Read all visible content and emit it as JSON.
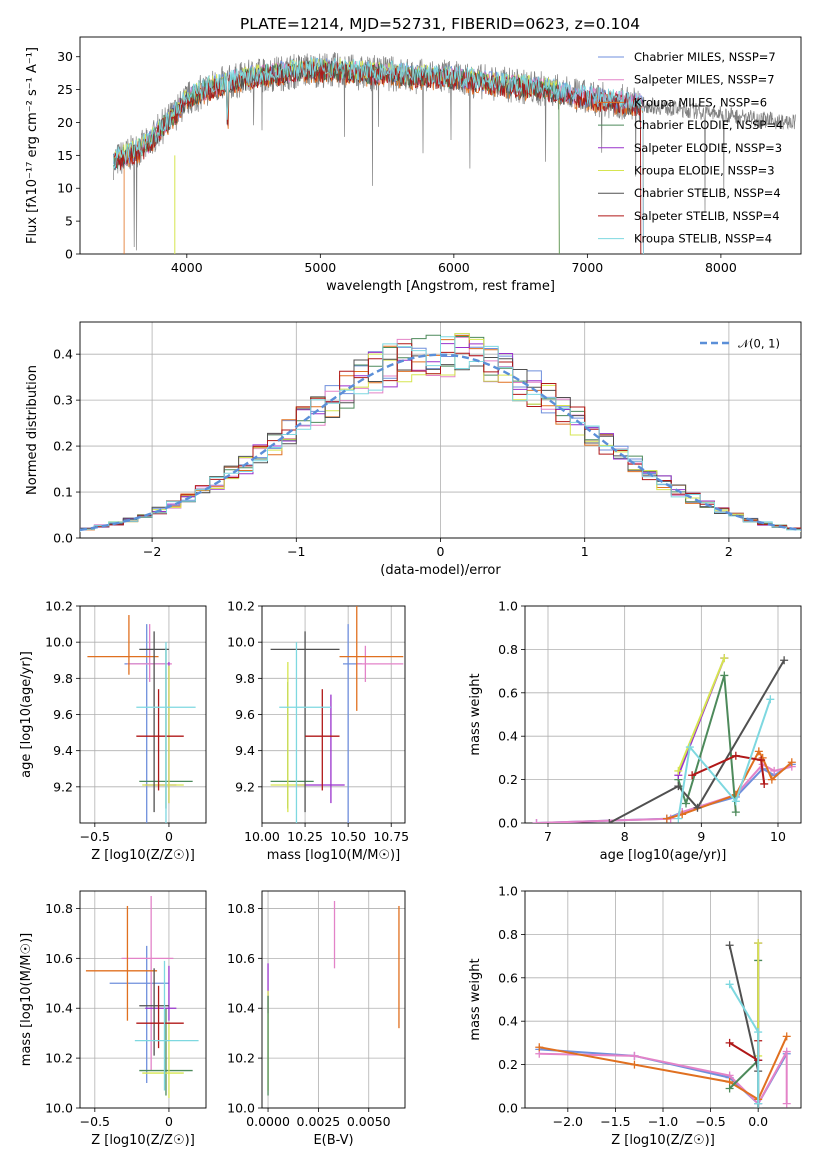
{
  "title": "PLATE=1214, MJD=52731, FIBERID=0623, z=0.104",
  "colors": {
    "miles_chabrier": "#6f8fdc",
    "miles_salpeter": "#e383c8",
    "miles_kroupa": "#e07020",
    "elodie_chabrier": "#4d8a5b",
    "elodie_salpeter": "#9932cc",
    "elodie_kroupa": "#d6e550",
    "stelib_chabrier": "#505050",
    "stelib_salpeter": "#b01818",
    "stelib_kroupa": "#7ed8e0",
    "data": "#808080",
    "gauss": "#5b8fd8"
  },
  "chart_data": [
    {
      "type": "line",
      "title": "PLATE=1214, MJD=52731, FIBERID=0623, z=0.104",
      "xlabel": "wavelength [Angstrom, rest frame]",
      "ylabel": "Flux [fλ10⁻¹⁷ erg cm⁻² s⁻¹ A⁻¹]",
      "xlim": [
        3200,
        8600
      ],
      "ylim": [
        0,
        33
      ],
      "xticks": [
        4000,
        5000,
        6000,
        7000,
        8000
      ],
      "yticks": [
        0,
        5,
        10,
        15,
        20,
        25,
        30
      ],
      "grid": false,
      "legend_position": "top-right",
      "legend": [
        {
          "label": "Chabrier MILES, NSSP=7",
          "color": "#6f8fdc"
        },
        {
          "label": "Salpeter MILES, NSSP=7",
          "color": "#e383c8"
        },
        {
          "label": "Kroupa MILES, NSSP=6",
          "color": "#e07020"
        },
        {
          "label": "Chabrier ELODIE, NSSP=4",
          "color": "#4d8a5b"
        },
        {
          "label": "Salpeter ELODIE, NSSP=3",
          "color": "#9932cc"
        },
        {
          "label": "Kroupa ELODIE, NSSP=3",
          "color": "#d6e550"
        },
        {
          "label": "Chabrier STELIB, NSSP=4",
          "color": "#505050"
        },
        {
          "label": "Salpeter STELIB, NSSP=4",
          "color": "#b01818"
        },
        {
          "label": "Kroupa STELIB, NSSP=4",
          "color": "#7ed8e0"
        }
      ],
      "spectrum_envelope": {
        "wavelength": [
          3450,
          3550,
          3700,
          3800,
          3900,
          4000,
          4100,
          4200,
          4300,
          4500,
          4700,
          4900,
          5100,
          5300,
          5500,
          5700,
          5900,
          6100,
          6300,
          6500,
          6700,
          6900,
          7100,
          7300,
          7500,
          7700,
          7900,
          8100,
          8300,
          8500
        ],
        "flux": [
          14,
          15,
          16.5,
          19,
          21,
          23.5,
          24.5,
          25.5,
          26,
          27,
          27.5,
          28,
          28,
          27.5,
          27.5,
          27,
          27,
          26.5,
          26,
          25.5,
          25,
          24,
          23.5,
          23,
          22.5,
          22,
          21.5,
          21,
          20.5,
          20
        ]
      }
    },
    {
      "type": "line",
      "xlabel": "(data-model)/error",
      "ylabel": "Normed distribution",
      "xlim": [
        -2.5,
        2.5
      ],
      "ylim": [
        0,
        0.47
      ],
      "xticks": [
        -2,
        -1,
        0,
        1,
        2
      ],
      "yticks": [
        0.0,
        0.1,
        0.2,
        0.3,
        0.4
      ],
      "grid": true,
      "legend_position": "top-right",
      "legend": [
        {
          "label": "𝒩(0, 1)",
          "color": "#5b8fd8"
        }
      ],
      "histogram_bin_width": 0.1
    },
    {
      "type": "scatter",
      "xlabel": "Z [log10(Z/Z☉)]",
      "ylabel": "age  [log10(age/yr)]",
      "xlim": [
        -0.6,
        0.25
      ],
      "ylim": [
        9.0,
        10.2
      ],
      "xticks": [
        -0.5,
        0.0
      ],
      "yticks": [
        9.2,
        9.4,
        9.6,
        9.8,
        10.0,
        10.2
      ],
      "grid": true,
      "points": [
        {
          "series": "Chabrier MILES",
          "x": -0.15,
          "xerr": [
            0.15,
            0.15
          ],
          "y": 9.88,
          "yerr": [
            0.9,
            0.22
          ]
        },
        {
          "series": "Salpeter MILES",
          "x": -0.13,
          "xerr": [
            0.15,
            0.15
          ],
          "y": 9.88,
          "yerr": [
            0.1,
            0.22
          ]
        },
        {
          "series": "Kroupa MILES",
          "x": -0.27,
          "xerr": [
            0.28,
            0.2
          ],
          "y": 9.92,
          "yerr": [
            0.1,
            0.23
          ]
        },
        {
          "series": "Chabrier ELODIE",
          "x": -0.02,
          "xerr": [
            0.18,
            0.18
          ],
          "y": 9.23,
          "yerr": [
            0.15,
            0.74
          ]
        },
        {
          "series": "Salpeter ELODIE",
          "x": 0.0,
          "xerr": [
            0.16,
            0.05
          ],
          "y": 9.21,
          "yerr": [
            0.1,
            0.68
          ]
        },
        {
          "series": "Kroupa ELODIE",
          "x": 0.0,
          "xerr": [
            0.18,
            0.1
          ],
          "y": 9.21,
          "yerr": [
            0.1,
            0.66
          ]
        },
        {
          "series": "Chabrier STELIB",
          "x": -0.1,
          "xerr": [
            0.1,
            0.1
          ],
          "y": 9.96,
          "yerr": [
            0.9,
            0.1
          ]
        },
        {
          "series": "Salpeter STELIB",
          "x": -0.07,
          "xerr": [
            0.15,
            0.17
          ],
          "y": 9.48,
          "yerr": [
            0.3,
            0.26
          ]
        },
        {
          "series": "Kroupa STELIB",
          "x": -0.02,
          "xerr": [
            0.2,
            0.2
          ],
          "y": 9.64,
          "yerr": [
            0.64,
            0.36
          ]
        }
      ]
    },
    {
      "type": "scatter",
      "xlabel": "mass [log10(M/M☉)]",
      "xlim": [
        10.0,
        10.83
      ],
      "ylim": [
        9.0,
        10.2
      ],
      "xticks": [
        10.0,
        10.25,
        10.5,
        10.75
      ],
      "xticklabels": [
        "10.00",
        "10.25",
        "10.50",
        "10.75"
      ],
      "yticks": [
        9.2,
        9.4,
        9.6,
        9.8,
        10.0,
        10.2
      ],
      "grid": true,
      "points": [
        {
          "series": "Chabrier MILES",
          "x": 10.5,
          "xerr": [
            0.03,
            0.08
          ],
          "y": 9.88,
          "yerr": [
            0.9,
            0.22
          ]
        },
        {
          "series": "Salpeter MILES",
          "x": 10.6,
          "xerr": [
            0.05,
            0.22
          ],
          "y": 9.88,
          "yerr": [
            0.1,
            0.1
          ]
        },
        {
          "series": "Kroupa MILES",
          "x": 10.55,
          "xerr": [
            0.1,
            0.27
          ],
          "y": 9.92,
          "yerr": [
            0.3,
            0.3
          ]
        },
        {
          "series": "Chabrier ELODIE",
          "x": 10.15,
          "xerr": [
            0.1,
            0.15
          ],
          "y": 9.23,
          "yerr": [
            0.15,
            0.55
          ]
        },
        {
          "series": "Salpeter ELODIE",
          "x": 10.4,
          "xerr": [
            0.2,
            0.08
          ],
          "y": 9.21,
          "yerr": [
            0.1,
            0.5
          ]
        },
        {
          "series": "Kroupa ELODIE",
          "x": 10.15,
          "xerr": [
            0.1,
            0.1
          ],
          "y": 9.21,
          "yerr": [
            0.15,
            0.68
          ]
        },
        {
          "series": "Chabrier STELIB",
          "x": 10.25,
          "xerr": [
            0.2,
            0.2
          ],
          "y": 9.96,
          "yerr": [
            0.9,
            0.1
          ]
        },
        {
          "series": "Salpeter STELIB",
          "x": 10.35,
          "xerr": [
            0.1,
            0.1
          ],
          "y": 9.48,
          "yerr": [
            0.3,
            0.26
          ]
        },
        {
          "series": "Kroupa STELIB",
          "x": 10.2,
          "xerr": [
            0.1,
            0.2
          ],
          "y": 9.64,
          "yerr": [
            0.64,
            0.36
          ]
        }
      ]
    },
    {
      "type": "line",
      "xlabel": "age  [log10(age/yr)]",
      "ylabel": "mass weight",
      "xlim": [
        6.7,
        10.3
      ],
      "ylim": [
        0,
        1
      ],
      "xticks": [
        7,
        8,
        9,
        10
      ],
      "yticks": [
        0.0,
        0.2,
        0.4,
        0.6,
        0.8,
        1.0
      ],
      "grid": true,
      "series": [
        {
          "name": "Chabrier MILES",
          "x": [
            6.85,
            8.55,
            8.75,
            9.45,
            9.8,
            9.95,
            10.18
          ],
          "y": [
            0.0,
            0.02,
            0.05,
            0.12,
            0.25,
            0.22,
            0.27
          ]
        },
        {
          "name": "Salpeter MILES",
          "x": [
            6.85,
            8.6,
            8.75,
            9.45,
            9.8,
            9.95,
            10.18
          ],
          "y": [
            0.0,
            0.02,
            0.05,
            0.13,
            0.27,
            0.24,
            0.26
          ]
        },
        {
          "name": "Kroupa MILES",
          "x": [
            8.55,
            8.75,
            9.45,
            9.75,
            9.8,
            9.92,
            10.18
          ],
          "y": [
            0.02,
            0.04,
            0.13,
            0.33,
            0.3,
            0.2,
            0.28
          ]
        },
        {
          "name": "Chabrier ELODIE",
          "x": [
            8.7,
            8.8,
            9.3,
            9.45
          ],
          "y": [
            0.2,
            0.09,
            0.68,
            0.05
          ]
        },
        {
          "name": "Salpeter ELODIE",
          "x": [
            8.7,
            9.3
          ],
          "y": [
            0.22,
            0.76
          ]
        },
        {
          "name": "Kroupa ELODIE",
          "x": [
            8.7,
            9.3
          ],
          "y": [
            0.24,
            0.76
          ]
        },
        {
          "name": "Chabrier STELIB",
          "x": [
            7.8,
            8.7,
            8.95,
            10.08
          ],
          "y": [
            0.0,
            0.17,
            0.07,
            0.75
          ]
        },
        {
          "name": "Salpeter STELIB",
          "x": [
            8.88,
            9.45,
            9.78,
            9.82
          ],
          "y": [
            0.22,
            0.31,
            0.29,
            0.18
          ]
        },
        {
          "name": "Kroupa STELIB",
          "x": [
            8.7,
            8.85,
            9.45,
            9.9
          ],
          "y": [
            0.02,
            0.35,
            0.1,
            0.57
          ]
        }
      ]
    },
    {
      "type": "scatter",
      "xlabel": "Z [log10(Z/Z☉)]",
      "ylabel": "mass [log10(M/M☉)]",
      "xlim": [
        -0.6,
        0.25
      ],
      "ylim": [
        10.0,
        10.87
      ],
      "xticks": [
        -0.5,
        0.0
      ],
      "yticks": [
        10.0,
        10.2,
        10.4,
        10.6,
        10.8
      ],
      "grid": true,
      "points": [
        {
          "series": "Chabrier MILES",
          "x": -0.15,
          "xerr": [
            0.25,
            0.15
          ],
          "y": 10.5,
          "yerr": [
            0.4,
            0.15
          ]
        },
        {
          "series": "Salpeter MILES",
          "x": -0.12,
          "xerr": [
            0.2,
            0.15
          ],
          "y": 10.6,
          "yerr": [
            0.45,
            0.25
          ]
        },
        {
          "series": "Kroupa MILES",
          "x": -0.28,
          "xerr": [
            0.28,
            0.2
          ],
          "y": 10.55,
          "yerr": [
            0.2,
            0.26
          ]
        },
        {
          "series": "Chabrier ELODIE",
          "x": -0.02,
          "xerr": [
            0.18,
            0.18
          ],
          "y": 10.15,
          "yerr": [
            0.1,
            0.25
          ]
        },
        {
          "series": "Salpeter ELODIE",
          "x": 0.0,
          "xerr": [
            0.16,
            0.05
          ],
          "y": 10.4,
          "yerr": [
            0.05,
            0.17
          ]
        },
        {
          "series": "Kroupa ELODIE",
          "x": 0.0,
          "xerr": [
            0.18,
            0.1
          ],
          "y": 10.14,
          "yerr": [
            0.1,
            0.2
          ]
        },
        {
          "series": "Chabrier STELIB",
          "x": -0.1,
          "xerr": [
            0.1,
            0.1
          ],
          "y": 10.41,
          "yerr": [
            0.2,
            0.15
          ]
        },
        {
          "series": "Salpeter STELIB",
          "x": -0.07,
          "xerr": [
            0.15,
            0.17
          ],
          "y": 10.34,
          "yerr": [
            0.1,
            0.15
          ]
        },
        {
          "series": "Kroupa STELIB",
          "x": -0.03,
          "xerr": [
            0.2,
            0.23
          ],
          "y": 10.27,
          "yerr": [
            0.2,
            0.32
          ]
        }
      ]
    },
    {
      "type": "scatter",
      "xlabel": "E(B-V)",
      "xlim": [
        -0.0003,
        0.0068
      ],
      "ylim": [
        10.0,
        10.87
      ],
      "xticks": [
        0.0,
        0.0025,
        0.005
      ],
      "xticklabels": [
        "0.0000",
        "0.0025",
        "0.0050"
      ],
      "yticks": [
        10.0,
        10.2,
        10.4,
        10.6,
        10.8
      ],
      "grid": true,
      "points": [
        {
          "series": "Salpeter MILES",
          "x": 0.0033,
          "y": 10.69,
          "yerr": [
            0.13,
            0.14
          ]
        },
        {
          "series": "Kroupa MILES",
          "x": 0.0065,
          "y": 10.56,
          "yerr": [
            0.24,
            0.25
          ]
        },
        {
          "series": "Salpeter ELODIE",
          "x": 0.0,
          "y": 10.48,
          "yerr": [
            0.1,
            0.1
          ]
        },
        {
          "series": "Kroupa ELODIE",
          "x": 0.0,
          "y": 10.27,
          "yerr": [
            0.2,
            0.2
          ]
        },
        {
          "series": "Chabrier ELODIE",
          "x": 0.0,
          "y": 10.25,
          "yerr": [
            0.2,
            0.2
          ]
        }
      ]
    },
    {
      "type": "line",
      "xlabel": "Z [log10(Z/Z☉)]",
      "ylabel": "mass weight",
      "xlim": [
        -2.45,
        0.45
      ],
      "ylim": [
        0,
        1
      ],
      "xticks": [
        -2.0,
        -1.5,
        -1.0,
        -0.5,
        0.0
      ],
      "xticklabels": [
        "−2.0",
        "−1.5",
        "−1.0",
        "−0.5",
        "0.0"
      ],
      "yticks": [
        0.0,
        0.2,
        0.4,
        0.6,
        0.8,
        1.0
      ],
      "grid": true,
      "series": [
        {
          "name": "Chabrier MILES",
          "x": [
            -2.3,
            -1.3,
            -0.3,
            0.0,
            0.3
          ],
          "y": [
            0.27,
            0.24,
            0.14,
            0.02,
            0.25
          ]
        },
        {
          "name": "Salpeter MILES",
          "x": [
            -2.3,
            -1.3,
            -0.3,
            0.0,
            0.3,
            0.3
          ],
          "y": [
            0.25,
            0.24,
            0.15,
            0.02,
            0.26,
            0.02
          ]
        },
        {
          "name": "Kroupa MILES",
          "x": [
            -2.3,
            -1.3,
            -0.3,
            0.0,
            0.3
          ],
          "y": [
            0.28,
            0.2,
            0.12,
            0.04,
            0.33
          ]
        },
        {
          "name": "Chabrier ELODIE",
          "x": [
            -0.3,
            0.0,
            0.0
          ],
          "y": [
            0.09,
            0.22,
            0.68
          ]
        },
        {
          "name": "Salpeter ELODIE",
          "x": [
            0.0,
            0.0
          ],
          "y": [
            0.22,
            0.76
          ]
        },
        {
          "name": "Kroupa ELODIE",
          "x": [
            0.0,
            0.0
          ],
          "y": [
            0.24,
            0.76
          ]
        },
        {
          "name": "Chabrier STELIB",
          "x": [
            -0.3,
            0.0,
            0.0
          ],
          "y": [
            0.75,
            0.17,
            0.0
          ]
        },
        {
          "name": "Salpeter STELIB",
          "x": [
            -0.3,
            0.0,
            0.0
          ],
          "y": [
            0.3,
            0.22,
            0.31
          ]
        },
        {
          "name": "Kroupa STELIB",
          "x": [
            -0.3,
            0.0,
            0.0
          ],
          "y": [
            0.57,
            0.35,
            0.02
          ]
        }
      ]
    }
  ]
}
